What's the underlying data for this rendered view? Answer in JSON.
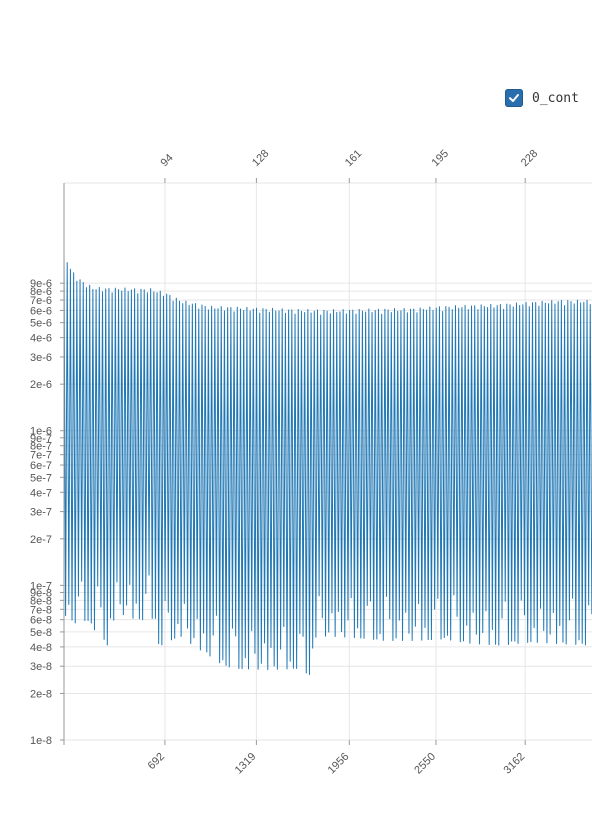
{
  "legend": {
    "label": "0_cont",
    "checked": true,
    "color": "#2a6fad"
  },
  "chart_data": {
    "type": "line",
    "title": "",
    "xlabel": "",
    "ylabel": "",
    "x_range": [
      0,
      3620
    ],
    "y_scale": "log",
    "y_range": [
      1e-08,
      4e-05
    ],
    "grid": true,
    "series_color": "#1f77b4",
    "x_ticks_bottom": [
      692,
      1319,
      1956,
      2550,
      3162
    ],
    "x_tick_labels_bottom": [
      "692",
      "1319",
      "1956",
      "2550",
      "3162"
    ],
    "x_ticks_top": [
      692,
      1319,
      1956,
      2550,
      3162
    ],
    "x_tick_labels_top": [
      "94",
      "128",
      "161",
      "195",
      "228"
    ],
    "y_ticks": [
      1e-08,
      2e-08,
      3e-08,
      4e-08,
      5e-08,
      6e-08,
      7e-08,
      8e-08,
      9e-08,
      1e-07,
      2e-07,
      3e-07,
      4e-07,
      5e-07,
      6e-07,
      7e-07,
      8e-07,
      9e-07,
      1e-06,
      2e-06,
      3e-06,
      4e-06,
      5e-06,
      6e-06,
      7e-06,
      8e-06,
      9e-06
    ],
    "y_tick_labels": [
      "1e-8",
      "2e-8",
      "3e-8",
      "4e-8",
      "5e-8",
      "6e-8",
      "7e-8",
      "8e-8",
      "9e-8",
      "1e-7",
      "2e-7",
      "3e-7",
      "4e-7",
      "5e-7",
      "6e-7",
      "7e-7",
      "8e-7",
      "9e-7",
      "1e-6",
      "2e-6",
      "3e-6",
      "4e-6",
      "5e-6",
      "6e-6",
      "7e-6",
      "8e-6",
      "9e-6"
    ],
    "oscillation_period": 22,
    "series": [
      {
        "label": "0_cont",
        "upper_envelope": {
          "x": [
            0,
            50,
            100,
            150,
            200,
            300,
            400,
            500,
            600,
            700,
            800,
            1000,
            1200,
            1400,
            1600,
            1800,
            2000,
            2200,
            2400,
            2600,
            2800,
            3000,
            3200,
            3400,
            3620
          ],
          "y": [
            1.45e-05,
            1.1e-05,
            9.7e-06,
            9e-06,
            8.5e-06,
            8.4e-06,
            8.4e-06,
            8.3e-06,
            8.3e-06,
            7.8e-06,
            7e-06,
            6.4e-06,
            6.3e-06,
            6.2e-06,
            6.1e-06,
            6.05e-06,
            6.1e-06,
            6.15e-06,
            6.2e-06,
            6.4e-06,
            6.5e-06,
            6.6e-06,
            6.8e-06,
            7e-06,
            7e-06
          ]
        },
        "lower_envelope": {
          "x": [
            0,
            50,
            100,
            150,
            200,
            250,
            300,
            350,
            400,
            500,
            600,
            620,
            650,
            700,
            800,
            900,
            1000,
            1100,
            1200,
            1400,
            1600,
            1700,
            1710,
            1800,
            2000,
            2200,
            2400,
            2600,
            2800,
            3000,
            3200,
            3400,
            3620
          ],
          "y": [
            6.5e-08,
            6e-08,
            5.5e-08,
            6e-08,
            5.2e-08,
            5e-08,
            4e-08,
            6.5e-08,
            6.5e-08,
            6e-08,
            6e-08,
            6.5e-08,
            4e-08,
            4.3e-08,
            4.7e-08,
            4e-08,
            3.5e-08,
            3e-08,
            2.9e-08,
            2.85e-08,
            2.9e-08,
            2.6e-08,
            4.6e-08,
            4.7e-08,
            4.6e-08,
            4.4e-08,
            4.4e-08,
            4.5e-08,
            4.2e-08,
            4.1e-08,
            4.3e-08,
            4.2e-08,
            4.1e-08
          ]
        }
      }
    ]
  }
}
